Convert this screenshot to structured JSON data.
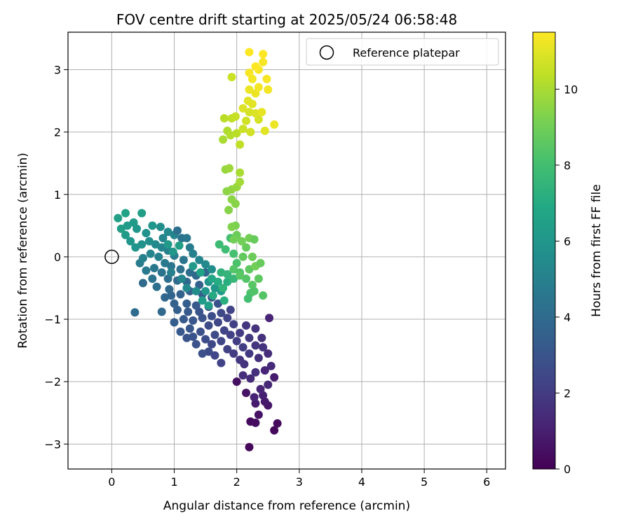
{
  "chart_data": {
    "type": "scatter",
    "title": "FOV centre drift starting at 2025/05/24 06:58:48",
    "xlabel": "Angular distance from reference (arcmin)",
    "ylabel": "Rotation from reference (arcmin)",
    "xlim": [
      -0.7,
      6.3
    ],
    "ylim": [
      -3.4,
      3.6
    ],
    "xticks": [
      "0",
      "1",
      "2",
      "3",
      "4",
      "5",
      "6"
    ],
    "yticks": [
      "−3",
      "−2",
      "−1",
      "0",
      "1",
      "2",
      "3"
    ],
    "xtick_values": [
      0,
      1,
      2,
      3,
      4,
      5,
      6
    ],
    "ytick_values": [
      -3,
      -2,
      -1,
      0,
      1,
      2,
      3
    ],
    "grid": true,
    "legend": {
      "position": "top-right",
      "entries": [
        {
          "label": "Reference platepar",
          "marker": "open-circle"
        }
      ]
    },
    "colorbar": {
      "label": "Hours from first FF file",
      "colormap": "viridis",
      "range": [
        0,
        11.5
      ],
      "ticks": [
        "0",
        "2",
        "4",
        "6",
        "8",
        "10"
      ],
      "tick_values": [
        0,
        2,
        4,
        6,
        8,
        10
      ]
    },
    "reference_point": {
      "x": 0.0,
      "y": 0.0
    },
    "points": [
      {
        "x": 2.2,
        "y": -3.05,
        "h": 0.2
      },
      {
        "x": 2.6,
        "y": -2.78,
        "h": 0.25
      },
      {
        "x": 2.65,
        "y": -2.67,
        "h": 0.35
      },
      {
        "x": 2.22,
        "y": -2.64,
        "h": 0.3
      },
      {
        "x": 2.3,
        "y": -2.66,
        "h": 0.4
      },
      {
        "x": 2.35,
        "y": -2.53,
        "h": 0.6
      },
      {
        "x": 2.5,
        "y": -2.38,
        "h": 0.7
      },
      {
        "x": 2.45,
        "y": -2.32,
        "h": 0.8
      },
      {
        "x": 2.3,
        "y": -2.35,
        "h": 0.9
      },
      {
        "x": 2.15,
        "y": -2.18,
        "h": 0.6
      },
      {
        "x": 2.42,
        "y": -2.22,
        "h": 1.0
      },
      {
        "x": 2.28,
        "y": -2.25,
        "h": 1.1
      },
      {
        "x": 2.38,
        "y": -2.12,
        "h": 1.2
      },
      {
        "x": 2.5,
        "y": -2.05,
        "h": 1.3
      },
      {
        "x": 2.6,
        "y": -1.93,
        "h": 0.9
      },
      {
        "x": 2.0,
        "y": -2.0,
        "h": 0.5
      },
      {
        "x": 2.22,
        "y": -1.95,
        "h": 1.4
      },
      {
        "x": 2.1,
        "y": -1.9,
        "h": 1.5
      },
      {
        "x": 2.3,
        "y": -1.85,
        "h": 1.6
      },
      {
        "x": 2.45,
        "y": -1.82,
        "h": 1.2
      },
      {
        "x": 2.55,
        "y": -1.75,
        "h": 1.4
      },
      {
        "x": 2.12,
        "y": -1.72,
        "h": 1.7
      },
      {
        "x": 2.05,
        "y": -1.65,
        "h": 1.8
      },
      {
        "x": 2.35,
        "y": -1.62,
        "h": 1.6
      },
      {
        "x": 2.5,
        "y": -1.55,
        "h": 1.5
      },
      {
        "x": 2.2,
        "y": -1.55,
        "h": 1.9
      },
      {
        "x": 1.95,
        "y": -1.55,
        "h": 2.0
      },
      {
        "x": 2.42,
        "y": -1.45,
        "h": 1.7
      },
      {
        "x": 2.3,
        "y": -1.42,
        "h": 1.8
      },
      {
        "x": 2.1,
        "y": -1.45,
        "h": 2.1
      },
      {
        "x": 1.85,
        "y": -1.48,
        "h": 2.2
      },
      {
        "x": 1.75,
        "y": -1.7,
        "h": 2.3
      },
      {
        "x": 1.65,
        "y": -1.58,
        "h": 2.4
      },
      {
        "x": 1.55,
        "y": -1.52,
        "h": 2.6
      },
      {
        "x": 1.45,
        "y": -1.55,
        "h": 2.8
      },
      {
        "x": 1.6,
        "y": -1.4,
        "h": 2.5
      },
      {
        "x": 1.75,
        "y": -1.35,
        "h": 2.4
      },
      {
        "x": 2.0,
        "y": -1.35,
        "h": 2.1
      },
      {
        "x": 2.2,
        "y": -1.3,
        "h": 1.9
      },
      {
        "x": 2.4,
        "y": -1.3,
        "h": 1.6
      },
      {
        "x": 2.05,
        "y": -1.22,
        "h": 2.0
      },
      {
        "x": 1.9,
        "y": -1.25,
        "h": 2.2
      },
      {
        "x": 1.8,
        "y": -1.18,
        "h": 2.3
      },
      {
        "x": 1.65,
        "y": -1.25,
        "h": 2.6
      },
      {
        "x": 1.5,
        "y": -1.32,
        "h": 2.7
      },
      {
        "x": 1.35,
        "y": -1.4,
        "h": 2.9
      },
      {
        "x": 1.42,
        "y": -1.2,
        "h": 2.8
      },
      {
        "x": 1.3,
        "y": -1.28,
        "h": 3.0
      },
      {
        "x": 1.25,
        "y": -1.15,
        "h": 3.1
      },
      {
        "x": 1.2,
        "y": -1.3,
        "h": 3.0
      },
      {
        "x": 1.1,
        "y": -1.2,
        "h": 3.2
      },
      {
        "x": 1.55,
        "y": -1.1,
        "h": 2.6
      },
      {
        "x": 1.7,
        "y": -1.05,
        "h": 2.4
      },
      {
        "x": 1.95,
        "y": -1.08,
        "h": 2.2
      },
      {
        "x": 2.15,
        "y": -1.1,
        "h": 1.8
      },
      {
        "x": 2.3,
        "y": -1.15,
        "h": 1.7
      },
      {
        "x": 2.52,
        "y": -0.98,
        "h": 1.2
      },
      {
        "x": 1.85,
        "y": -0.98,
        "h": 2.3
      },
      {
        "x": 1.6,
        "y": -0.95,
        "h": 2.7
      },
      {
        "x": 1.45,
        "y": -0.98,
        "h": 2.9
      },
      {
        "x": 1.3,
        "y": -1.02,
        "h": 3.1
      },
      {
        "x": 1.15,
        "y": -1.0,
        "h": 3.3
      },
      {
        "x": 1.0,
        "y": -1.05,
        "h": 3.4
      },
      {
        "x": 1.22,
        "y": -0.88,
        "h": 3.2
      },
      {
        "x": 1.4,
        "y": -0.88,
        "h": 3.0
      },
      {
        "x": 1.05,
        "y": -0.85,
        "h": 3.5
      },
      {
        "x": 1.75,
        "y": -0.9,
        "h": 2.5
      },
      {
        "x": 1.9,
        "y": -0.85,
        "h": 2.3
      },
      {
        "x": 1.55,
        "y": -0.8,
        "h": 2.8
      },
      {
        "x": 1.35,
        "y": -0.78,
        "h": 3.2
      },
      {
        "x": 1.2,
        "y": -0.75,
        "h": 3.4
      },
      {
        "x": 1.0,
        "y": -0.75,
        "h": 3.6
      },
      {
        "x": 0.95,
        "y": -0.62,
        "h": 3.7
      },
      {
        "x": 0.85,
        "y": -0.65,
        "h": 3.8
      },
      {
        "x": 0.92,
        "y": -0.52,
        "h": 3.9
      },
      {
        "x": 0.8,
        "y": -0.88,
        "h": 3.9
      },
      {
        "x": 0.37,
        "y": -0.89,
        "h": 4.1
      },
      {
        "x": 0.5,
        "y": -0.42,
        "h": 4.0
      },
      {
        "x": 0.72,
        "y": -0.48,
        "h": 4.2
      },
      {
        "x": 0.65,
        "y": -0.35,
        "h": 4.4
      },
      {
        "x": 1.1,
        "y": -0.6,
        "h": 3.6
      },
      {
        "x": 1.25,
        "y": -0.55,
        "h": 3.5
      },
      {
        "x": 1.45,
        "y": -0.6,
        "h": 3.3
      },
      {
        "x": 1.6,
        "y": -0.65,
        "h": 3.1
      },
      {
        "x": 1.7,
        "y": -0.75,
        "h": 3.0
      },
      {
        "x": 1.4,
        "y": -0.45,
        "h": 3.6
      },
      {
        "x": 1.2,
        "y": -0.4,
        "h": 3.8
      },
      {
        "x": 1.05,
        "y": -0.38,
        "h": 4.0
      },
      {
        "x": 0.9,
        "y": -0.35,
        "h": 4.2
      },
      {
        "x": 0.8,
        "y": -0.25,
        "h": 4.4
      },
      {
        "x": 0.68,
        "y": -0.18,
        "h": 4.6
      },
      {
        "x": 0.55,
        "y": -0.22,
        "h": 4.7
      },
      {
        "x": 0.45,
        "y": -0.1,
        "h": 4.8
      },
      {
        "x": 0.5,
        "y": -0.02,
        "h": 5.0
      },
      {
        "x": 0.62,
        "y": 0.05,
        "h": 5.2
      },
      {
        "x": 0.75,
        "y": 0.0,
        "h": 5.0
      },
      {
        "x": 0.85,
        "y": -0.1,
        "h": 4.7
      },
      {
        "x": 0.95,
        "y": -0.15,
        "h": 4.5
      },
      {
        "x": 1.1,
        "y": -0.2,
        "h": 4.3
      },
      {
        "x": 1.25,
        "y": -0.25,
        "h": 4.1
      },
      {
        "x": 1.35,
        "y": -0.3,
        "h": 3.9
      },
      {
        "x": 1.5,
        "y": -0.25,
        "h": 3.8
      },
      {
        "x": 1.15,
        "y": -0.05,
        "h": 4.5
      },
      {
        "x": 1.0,
        "y": 0.02,
        "h": 4.8
      },
      {
        "x": 0.9,
        "y": 0.1,
        "h": 5.0
      },
      {
        "x": 0.8,
        "y": 0.15,
        "h": 5.2
      },
      {
        "x": 0.7,
        "y": 0.2,
        "h": 5.4
      },
      {
        "x": 0.6,
        "y": 0.25,
        "h": 5.6
      },
      {
        "x": 0.48,
        "y": 0.2,
        "h": 5.8
      },
      {
        "x": 0.38,
        "y": 0.15,
        "h": 5.9
      },
      {
        "x": 0.3,
        "y": 0.25,
        "h": 6.0
      },
      {
        "x": 0.22,
        "y": 0.35,
        "h": 6.2
      },
      {
        "x": 0.15,
        "y": 0.45,
        "h": 6.4
      },
      {
        "x": 0.25,
        "y": 0.5,
        "h": 6.3
      },
      {
        "x": 0.35,
        "y": 0.55,
        "h": 6.2
      },
      {
        "x": 0.1,
        "y": 0.62,
        "h": 6.5
      },
      {
        "x": 0.22,
        "y": 0.7,
        "h": 6.6
      },
      {
        "x": 0.48,
        "y": 0.7,
        "h": 6.4
      },
      {
        "x": 0.4,
        "y": 0.45,
        "h": 6.0
      },
      {
        "x": 0.55,
        "y": 0.38,
        "h": 5.8
      },
      {
        "x": 0.65,
        "y": 0.5,
        "h": 6.0
      },
      {
        "x": 0.78,
        "y": 0.48,
        "h": 5.6
      },
      {
        "x": 0.9,
        "y": 0.4,
        "h": 5.4
      },
      {
        "x": 0.82,
        "y": 0.3,
        "h": 5.3
      },
      {
        "x": 1.0,
        "y": 0.35,
        "h": 5.2
      },
      {
        "x": 1.05,
        "y": 0.42,
        "h": 4.2
      },
      {
        "x": 1.12,
        "y": 0.3,
        "h": 4.4
      },
      {
        "x": 1.2,
        "y": 0.3,
        "h": 4.6
      },
      {
        "x": 1.25,
        "y": 0.15,
        "h": 4.8
      },
      {
        "x": 1.3,
        "y": 0.05,
        "h": 5.0
      },
      {
        "x": 1.4,
        "y": -0.05,
        "h": 5.2
      },
      {
        "x": 1.5,
        "y": -0.12,
        "h": 5.4
      },
      {
        "x": 1.6,
        "y": -0.2,
        "h": 5.6
      },
      {
        "x": 1.55,
        "y": -0.4,
        "h": 5.8
      },
      {
        "x": 1.65,
        "y": -0.5,
        "h": 6.0
      },
      {
        "x": 1.75,
        "y": -0.55,
        "h": 6.2
      },
      {
        "x": 1.5,
        "y": -0.55,
        "h": 6.0
      },
      {
        "x": 1.45,
        "y": -0.7,
        "h": 6.3
      },
      {
        "x": 1.55,
        "y": -0.78,
        "h": 6.5
      },
      {
        "x": 1.35,
        "y": -0.55,
        "h": 5.6
      },
      {
        "x": 1.2,
        "y": -0.5,
        "h": 5.4
      },
      {
        "x": 1.12,
        "y": -0.35,
        "h": 5.2
      },
      {
        "x": 0.95,
        "y": -0.25,
        "h": 5.0
      },
      {
        "x": 0.9,
        "y": 0.2,
        "h": 6.2
      },
      {
        "x": 0.98,
        "y": 0.08,
        "h": 6.0
      },
      {
        "x": 1.08,
        "y": 0.18,
        "h": 6.4
      },
      {
        "x": 1.3,
        "y": -0.15,
        "h": 6.2
      },
      {
        "x": 1.42,
        "y": -0.25,
        "h": 6.6
      },
      {
        "x": 1.6,
        "y": -0.35,
        "h": 6.8
      },
      {
        "x": 1.7,
        "y": -0.4,
        "h": 7.0
      },
      {
        "x": 1.62,
        "y": -0.62,
        "h": 7.0
      },
      {
        "x": 1.8,
        "y": -0.7,
        "h": 7.2
      },
      {
        "x": 1.85,
        "y": -0.4,
        "h": 7.2
      },
      {
        "x": 1.75,
        "y": -0.25,
        "h": 7.4
      },
      {
        "x": 1.85,
        "y": -0.28,
        "h": 7.5
      },
      {
        "x": 1.95,
        "y": -0.35,
        "h": 7.6
      },
      {
        "x": 1.78,
        "y": -0.5,
        "h": 7.4
      },
      {
        "x": 1.72,
        "y": 0.2,
        "h": 7.8
      },
      {
        "x": 1.82,
        "y": 0.12,
        "h": 7.9
      },
      {
        "x": 1.9,
        "y": 0.3,
        "h": 8.0
      },
      {
        "x": 1.95,
        "y": 0.05,
        "h": 8.1
      },
      {
        "x": 2.0,
        "y": -0.1,
        "h": 8.2
      },
      {
        "x": 2.05,
        "y": -0.25,
        "h": 8.3
      },
      {
        "x": 2.15,
        "y": -0.35,
        "h": 8.4
      },
      {
        "x": 2.25,
        "y": -0.45,
        "h": 8.5
      },
      {
        "x": 2.2,
        "y": -0.2,
        "h": 8.6
      },
      {
        "x": 2.1,
        "y": 0.0,
        "h": 8.7
      },
      {
        "x": 2.15,
        "y": 0.15,
        "h": 8.8
      },
      {
        "x": 2.25,
        "y": 0.0,
        "h": 8.9
      },
      {
        "x": 2.3,
        "y": -0.15,
        "h": 9.0
      },
      {
        "x": 2.38,
        "y": -0.1,
        "h": 8.8
      },
      {
        "x": 2.35,
        "y": -0.35,
        "h": 8.6
      },
      {
        "x": 2.42,
        "y": -0.62,
        "h": 8.4
      },
      {
        "x": 2.22,
        "y": -0.58,
        "h": 8.2
      },
      {
        "x": 2.18,
        "y": -0.67,
        "h": 8.0
      },
      {
        "x": 2.28,
        "y": -0.55,
        "h": 8.3
      },
      {
        "x": 2.05,
        "y": -0.3,
        "h": 8.5
      },
      {
        "x": 1.95,
        "y": -0.2,
        "h": 8.4
      },
      {
        "x": 2.0,
        "y": 0.35,
        "h": 8.9
      },
      {
        "x": 2.08,
        "y": 0.25,
        "h": 9.0
      },
      {
        "x": 2.2,
        "y": 0.3,
        "h": 9.1
      },
      {
        "x": 2.28,
        "y": 0.28,
        "h": 8.8
      },
      {
        "x": 1.98,
        "y": 0.5,
        "h": 9.2
      },
      {
        "x": 1.92,
        "y": 0.48,
        "h": 9.3
      },
      {
        "x": 1.95,
        "y": 0.28,
        "h": 9.0
      },
      {
        "x": 1.87,
        "y": 0.75,
        "h": 9.4
      },
      {
        "x": 1.92,
        "y": 0.92,
        "h": 9.5
      },
      {
        "x": 1.98,
        "y": 0.85,
        "h": 9.4
      },
      {
        "x": 1.84,
        "y": 1.05,
        "h": 9.5
      },
      {
        "x": 1.92,
        "y": 1.08,
        "h": 9.6
      },
      {
        "x": 2.0,
        "y": 1.12,
        "h": 9.7
      },
      {
        "x": 1.82,
        "y": 1.4,
        "h": 9.7
      },
      {
        "x": 1.88,
        "y": 1.42,
        "h": 9.8
      },
      {
        "x": 2.05,
        "y": 1.2,
        "h": 9.9
      },
      {
        "x": 2.05,
        "y": 1.35,
        "h": 10.0
      },
      {
        "x": 1.78,
        "y": 1.88,
        "h": 10.0
      },
      {
        "x": 1.85,
        "y": 2.02,
        "h": 10.1
      },
      {
        "x": 1.9,
        "y": 1.95,
        "h": 10.2
      },
      {
        "x": 1.8,
        "y": 2.22,
        "h": 10.3
      },
      {
        "x": 1.92,
        "y": 2.22,
        "h": 10.4
      },
      {
        "x": 1.98,
        "y": 2.25,
        "h": 10.5
      },
      {
        "x": 2.0,
        "y": 1.98,
        "h": 10.3
      },
      {
        "x": 2.05,
        "y": 1.8,
        "h": 10.4
      },
      {
        "x": 2.1,
        "y": 2.05,
        "h": 10.6
      },
      {
        "x": 2.15,
        "y": 2.18,
        "h": 10.7
      },
      {
        "x": 2.2,
        "y": 2.32,
        "h": 10.8
      },
      {
        "x": 2.1,
        "y": 2.38,
        "h": 10.9
      },
      {
        "x": 2.18,
        "y": 2.5,
        "h": 11.0
      },
      {
        "x": 2.25,
        "y": 2.45,
        "h": 11.0
      },
      {
        "x": 2.3,
        "y": 2.3,
        "h": 10.9
      },
      {
        "x": 2.35,
        "y": 2.2,
        "h": 10.8
      },
      {
        "x": 2.4,
        "y": 2.32,
        "h": 11.1
      },
      {
        "x": 2.45,
        "y": 2.02,
        "h": 11.0
      },
      {
        "x": 2.6,
        "y": 2.12,
        "h": 11.2
      },
      {
        "x": 2.22,
        "y": 2.0,
        "h": 10.7
      },
      {
        "x": 2.3,
        "y": 2.62,
        "h": 11.2
      },
      {
        "x": 2.2,
        "y": 2.68,
        "h": 11.2
      },
      {
        "x": 2.35,
        "y": 2.72,
        "h": 11.3
      },
      {
        "x": 2.5,
        "y": 2.68,
        "h": 11.3
      },
      {
        "x": 2.25,
        "y": 2.85,
        "h": 11.3
      },
      {
        "x": 2.48,
        "y": 2.85,
        "h": 11.4
      },
      {
        "x": 2.35,
        "y": 3.0,
        "h": 11.4
      },
      {
        "x": 2.2,
        "y": 2.95,
        "h": 11.4
      },
      {
        "x": 2.3,
        "y": 3.05,
        "h": 11.5
      },
      {
        "x": 2.2,
        "y": 3.28,
        "h": 11.5
      },
      {
        "x": 2.42,
        "y": 3.25,
        "h": 11.5
      },
      {
        "x": 2.42,
        "y": 3.12,
        "h": 11.4
      },
      {
        "x": 1.92,
        "y": 2.88,
        "h": 10.6
      }
    ]
  }
}
